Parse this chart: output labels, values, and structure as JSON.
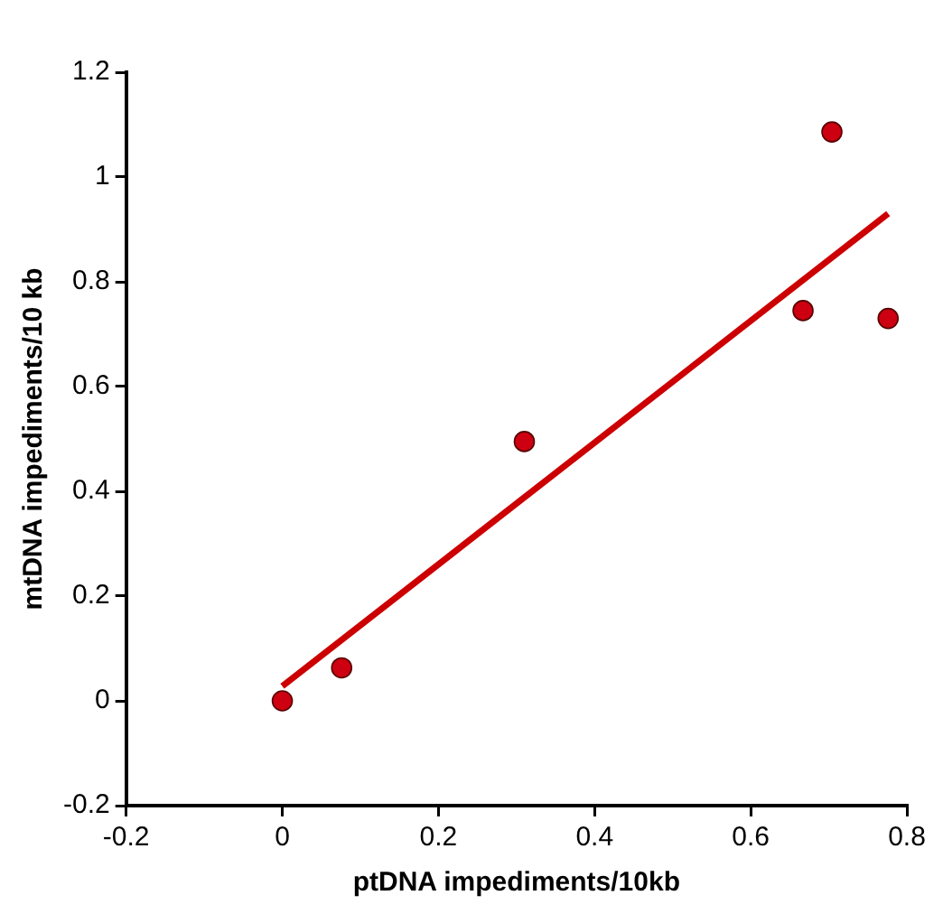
{
  "chart_data": {
    "type": "scatter",
    "xlabel": "ptDNA impediments/10kb",
    "ylabel": "mtDNA impediments/10 kb",
    "xlim": [
      -0.2,
      0.8
    ],
    "xticks": [
      -0.2,
      0,
      0.2,
      0.4,
      0.6,
      0.8
    ],
    "ylim": [
      -0.2,
      1.2
    ],
    "yticks": [
      -0.2,
      0,
      0.2,
      0.4,
      0.6,
      0.8,
      1,
      1.2
    ],
    "grid": false,
    "legend": false,
    "marker": "circle",
    "series": [
      {
        "type": "scatter",
        "color": "#cc0011",
        "x": [
          0,
          0.076,
          0.31,
          0.667,
          0.704,
          0.776
        ],
        "values": [
          0,
          0.063,
          0.495,
          0.745,
          1.086,
          0.73
        ]
      },
      {
        "type": "line",
        "color": "#cc0000",
        "x": [
          0,
          0.776
        ],
        "values": [
          0.028,
          0.93
        ],
        "marker": "none",
        "line_style": "solid"
      }
    ]
  }
}
